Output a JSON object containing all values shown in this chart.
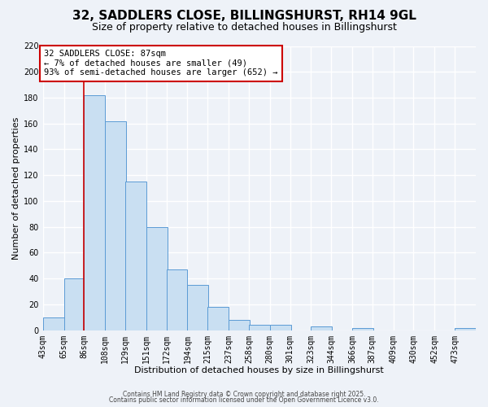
{
  "title": "32, SADDLERS CLOSE, BILLINGSHURST, RH14 9GL",
  "subtitle": "Size of property relative to detached houses in Billingshurst",
  "xlabel": "Distribution of detached houses by size in Billingshurst",
  "ylabel": "Number of detached properties",
  "bar_labels": [
    "43sqm",
    "65sqm",
    "86sqm",
    "108sqm",
    "129sqm",
    "151sqm",
    "172sqm",
    "194sqm",
    "215sqm",
    "237sqm",
    "258sqm",
    "280sqm",
    "301sqm",
    "323sqm",
    "344sqm",
    "366sqm",
    "387sqm",
    "409sqm",
    "430sqm",
    "452sqm",
    "473sqm"
  ],
  "bar_left_edges": [
    43,
    65,
    86,
    108,
    129,
    151,
    172,
    194,
    215,
    237,
    258,
    280,
    301,
    323,
    344,
    366,
    387,
    409,
    430,
    452,
    473
  ],
  "bar_heights": [
    10,
    40,
    182,
    162,
    115,
    80,
    47,
    35,
    18,
    8,
    4,
    4,
    0,
    3,
    0,
    2,
    0,
    0,
    0,
    0,
    2
  ],
  "bin_width": 22,
  "bar_color": "#c9dff2",
  "bar_edge_color": "#5b9bd5",
  "property_line_x": 86,
  "property_line_color": "#cc0000",
  "annotation_text": "32 SADDLERS CLOSE: 87sqm\n← 7% of detached houses are smaller (49)\n93% of semi-detached houses are larger (652) →",
  "annotation_box_color": "#ffffff",
  "annotation_box_edge": "#cc0000",
  "xlim_left": 43,
  "xlim_right": 495,
  "ylim": [
    0,
    220
  ],
  "yticks": [
    0,
    20,
    40,
    60,
    80,
    100,
    120,
    140,
    160,
    180,
    200,
    220
  ],
  "footer1": "Contains HM Land Registry data © Crown copyright and database right 2025.",
  "footer2": "Contains public sector information licensed under the Open Government Licence v3.0.",
  "bg_color": "#eef2f8",
  "grid_color": "#ffffff",
  "title_fontsize": 11,
  "subtitle_fontsize": 9,
  "axis_label_fontsize": 8,
  "tick_fontsize": 7,
  "annotation_fontsize": 7.5
}
